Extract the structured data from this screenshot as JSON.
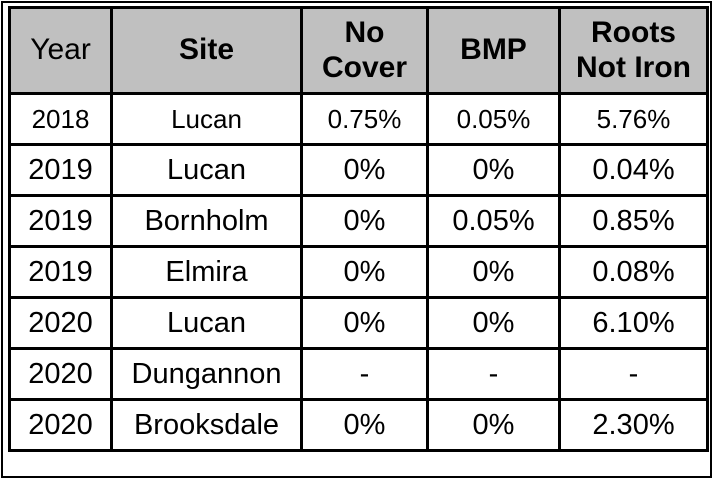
{
  "table": {
    "header": [
      "Year",
      "Site",
      "No\nCover",
      "BMP",
      "Roots\nNot Iron"
    ],
    "rows": [
      [
        "2018",
        "Lucan",
        "0.75%",
        "0.05%",
        "5.76%"
      ],
      [
        "2019",
        "Lucan",
        "0%",
        "0%",
        "0.04%"
      ],
      [
        "2019",
        "Bornholm",
        "0%",
        "0.05%",
        "0.85%"
      ],
      [
        "2019",
        "Elmira",
        "0%",
        "0%",
        "0.08%"
      ],
      [
        "2020",
        "Lucan",
        "0%",
        "0%",
        "6.10%"
      ],
      [
        "2020",
        "Dungannon",
        "-",
        "-",
        "-"
      ],
      [
        "2020",
        "Brooksdale",
        "0%",
        "0%",
        "2.30%"
      ]
    ],
    "colors": {
      "header_bg": "#c0c0c0",
      "border": "#000000",
      "text": "#000000",
      "cell_bg": "#ffffff"
    }
  }
}
